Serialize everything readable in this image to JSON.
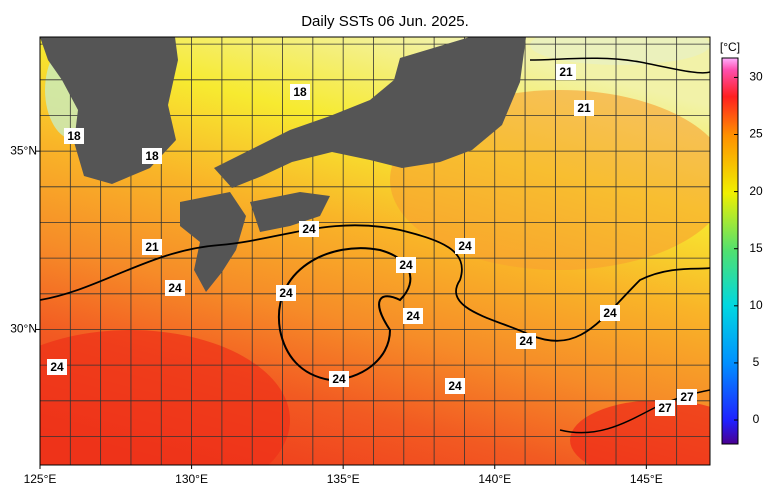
{
  "map": {
    "title": "Daily SSTs 06 Jun. 2025.",
    "lonlim": [
      125,
      147.1
    ],
    "latlim": [
      26.2,
      38.2
    ],
    "lon_ticks": [
      {
        "value": 125,
        "label": "125°E"
      },
      {
        "value": 130,
        "label": "130°E"
      },
      {
        "value": 135,
        "label": "135°E"
      },
      {
        "value": 140,
        "label": "140°E"
      },
      {
        "value": 145,
        "label": "145°E"
      }
    ],
    "lat_ticks": [
      {
        "value": 35,
        "label": "35°N"
      },
      {
        "value": 30,
        "label": "30°N"
      }
    ],
    "lon_grid": [
      126,
      127,
      128,
      129,
      130,
      131,
      132,
      133,
      134,
      135,
      136,
      137,
      138,
      139,
      140,
      141,
      142,
      143,
      144,
      145,
      146
    ],
    "lat_grid": [
      27,
      28,
      29,
      30,
      31,
      32,
      33,
      34,
      35,
      36,
      37,
      38
    ],
    "colorbar": {
      "unit": "[°C]",
      "lim": [
        -2.1,
        31.7
      ],
      "ticks": [
        0,
        5,
        10,
        15,
        20,
        25,
        30
      ]
    },
    "contour_labels": [
      18,
      18,
      18,
      21,
      21,
      21,
      24,
      24,
      24,
      24,
      24,
      24,
      24,
      24,
      24,
      24,
      24,
      27,
      27
    ]
  }
}
